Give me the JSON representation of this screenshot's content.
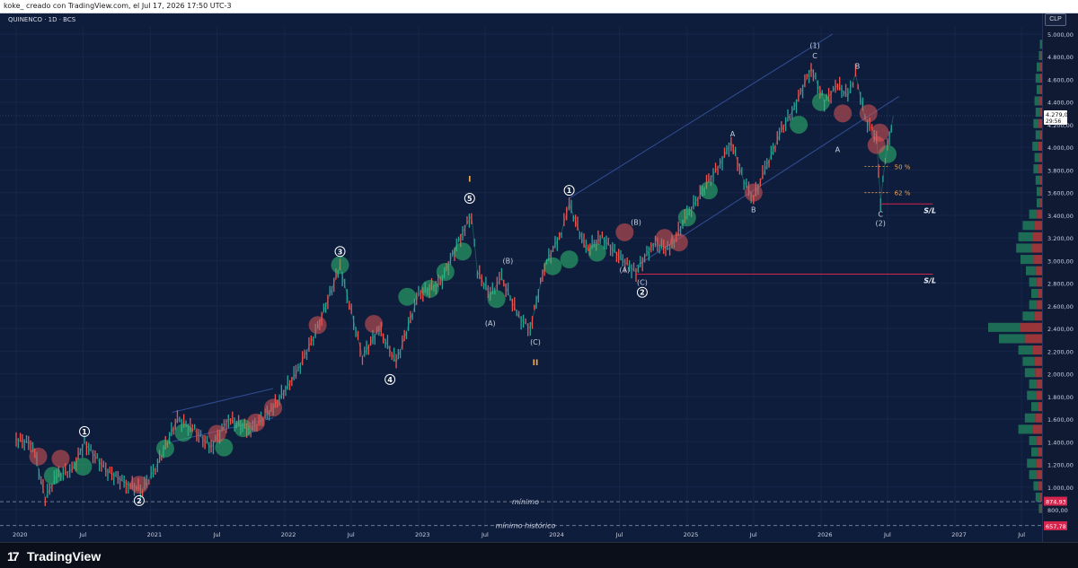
{
  "header": {
    "text": "koke_ creado con TradingView.com, el Jul 17, 2026 17:50 UTC-3"
  },
  "symbol": {
    "text": "QUINENCO · 1D · BCS"
  },
  "price_scale": {
    "currency": "CLP"
  },
  "footer": {
    "brand": "TradingView"
  },
  "colors": {
    "background": "#0f1d3d",
    "up": "#26a69a",
    "down": "#ef5350",
    "fib": "#f0a550",
    "sl": "#d6254d"
  },
  "chart_data": {
    "type": "candlestick",
    "y_ticks": [
      "5.000,00",
      "4.800,00",
      "4.600,00",
      "4.400,00",
      "4.200,00",
      "4.000,00",
      "3.800,00",
      "3.600,00",
      "3.400,00",
      "3.200,00",
      "3.000,00",
      "2.800,00",
      "2.600,00",
      "2.400,00",
      "2.200,00",
      "2.000,00",
      "1.800,00",
      "1.600,00",
      "1.400,00",
      "1.200,00",
      "1.000,00",
      "800,00"
    ],
    "y_tick_values": [
      5000,
      4800,
      4600,
      4400,
      4200,
      4000,
      3800,
      3600,
      3400,
      3200,
      3000,
      2800,
      2600,
      2400,
      2200,
      2000,
      1800,
      1600,
      1400,
      1200,
      1000,
      800
    ],
    "x_ticks": [
      "2020",
      "Jul",
      "2021",
      "Jul",
      "2022",
      "Jul",
      "2023",
      "Jul",
      "2024",
      "Jul",
      "2025",
      "Jul",
      "2026",
      "Jul",
      "2027",
      "Jul"
    ],
    "x_tick_dates": [
      "2020-01-01",
      "2020-07-01",
      "2021-01-01",
      "2021-07-01",
      "2022-01-01",
      "2022-07-01",
      "2023-01-01",
      "2023-07-01",
      "2024-01-01",
      "2024-07-01",
      "2025-01-01",
      "2025-07-01",
      "2026-01-01",
      "2026-07-01",
      "2027-01-01",
      "2027-07-01"
    ],
    "last_price": "4.279,0",
    "countdown": "29:56",
    "price_tags": [
      {
        "label": "874,93",
        "value": 874.93
      },
      {
        "label": "657,78",
        "value": 657.78
      }
    ],
    "price_path": [
      [
        "2020-01-01",
        1420
      ],
      [
        "2020-02-15",
        1380
      ],
      [
        "2020-03-20",
        900
      ],
      [
        "2020-04-20",
        1100
      ],
      [
        "2020-06-01",
        1150
      ],
      [
        "2020-07-05",
        1390
      ],
      [
        "2020-09-01",
        1150
      ],
      [
        "2020-11-01",
        1020
      ],
      [
        "2020-12-10",
        980
      ],
      [
        "2021-01-20",
        1200
      ],
      [
        "2021-03-15",
        1600
      ],
      [
        "2021-05-01",
        1500
      ],
      [
        "2021-06-15",
        1350
      ],
      [
        "2021-08-01",
        1600
      ],
      [
        "2021-10-01",
        1500
      ],
      [
        "2021-12-01",
        1700
      ],
      [
        "2022-02-01",
        2000
      ],
      [
        "2022-04-01",
        2400
      ],
      [
        "2022-06-01",
        2950
      ],
      [
        "2022-06-20",
        2700
      ],
      [
        "2022-08-01",
        2150
      ],
      [
        "2022-09-15",
        2400
      ],
      [
        "2022-11-01",
        2100
      ],
      [
        "2023-01-01",
        2700
      ],
      [
        "2023-03-01",
        2800
      ],
      [
        "2023-05-01",
        3250
      ],
      [
        "2023-05-25",
        3400
      ],
      [
        "2023-06-10",
        2900
      ],
      [
        "2023-07-15",
        2700
      ],
      [
        "2023-08-15",
        2850
      ],
      [
        "2023-10-01",
        2500
      ],
      [
        "2023-11-01",
        2400
      ],
      [
        "2023-12-10",
        2950
      ],
      [
        "2024-01-25",
        3250
      ],
      [
        "2024-02-15",
        3500
      ],
      [
        "2024-04-01",
        3100
      ],
      [
        "2024-05-15",
        3200
      ],
      [
        "2024-07-10",
        3000
      ],
      [
        "2024-08-15",
        2900
      ],
      [
        "2024-10-01",
        3150
      ],
      [
        "2024-11-15",
        3100
      ],
      [
        "2025-01-01",
        3400
      ],
      [
        "2025-03-01",
        3700
      ],
      [
        "2025-04-01",
        3850
      ],
      [
        "2025-05-01",
        4050
      ],
      [
        "2025-06-05",
        3700
      ],
      [
        "2025-07-01",
        3550
      ],
      [
        "2025-08-01",
        3800
      ],
      [
        "2025-09-15",
        4150
      ],
      [
        "2025-10-20",
        4350
      ],
      [
        "2025-12-05",
        4700
      ],
      [
        "2026-01-10",
        4400
      ],
      [
        "2026-02-15",
        4550
      ],
      [
        "2026-03-15",
        4450
      ],
      [
        "2026-04-05",
        4650
      ],
      [
        "2026-05-01",
        4250
      ],
      [
        "2026-06-01",
        4100
      ],
      [
        "2026-06-12",
        3520
      ],
      [
        "2026-06-25",
        3900
      ],
      [
        "2026-07-17",
        4279
      ]
    ],
    "up_circles": [
      [
        "2020-04-10",
        1100
      ],
      [
        "2020-07-01",
        1180
      ],
      [
        "2021-02-10",
        1340
      ],
      [
        "2021-04-01",
        1480
      ],
      [
        "2021-07-20",
        1350
      ],
      [
        "2021-09-10",
        1520
      ],
      [
        "2022-06-01",
        2960
      ],
      [
        "2022-12-01",
        2680
      ],
      [
        "2023-02-01",
        2750
      ],
      [
        "2023-03-15",
        2900
      ],
      [
        "2023-05-01",
        3080
      ],
      [
        "2023-08-01",
        2660
      ],
      [
        "2024-01-01",
        2950
      ],
      [
        "2024-02-15",
        3010
      ],
      [
        "2024-05-01",
        3070
      ],
      [
        "2025-01-01",
        3380
      ],
      [
        "2025-03-01",
        3620
      ],
      [
        "2025-11-01",
        4200
      ],
      [
        "2026-01-01",
        4400
      ],
      [
        "2026-07-01",
        3940
      ]
    ],
    "down_circles": [
      [
        "2020-03-01",
        1270
      ],
      [
        "2020-05-01",
        1250
      ],
      [
        "2020-12-01",
        1020
      ],
      [
        "2021-07-01",
        1470
      ],
      [
        "2021-10-15",
        1570
      ],
      [
        "2021-12-01",
        1700
      ],
      [
        "2022-04-01",
        2430
      ],
      [
        "2022-09-01",
        2440
      ],
      [
        "2024-07-15",
        3250
      ],
      [
        "2024-11-01",
        3200
      ],
      [
        "2024-12-10",
        3160
      ],
      [
        "2025-07-01",
        3600
      ],
      [
        "2026-03-01",
        4300
      ],
      [
        "2026-05-10",
        4300
      ],
      [
        "2026-06-10",
        4130
      ],
      [
        "2026-06-01",
        4020
      ]
    ],
    "wave_labels": [
      {
        "text": "1",
        "circled": true,
        "x": "2020-07-05",
        "y": 1490
      },
      {
        "text": "2",
        "circled": true,
        "x": "2020-12-01",
        "y": 880
      },
      {
        "text": "3",
        "circled": true,
        "x": "2022-06-01",
        "y": 3080
      },
      {
        "text": "4",
        "circled": true,
        "x": "2022-10-15",
        "y": 1950
      },
      {
        "text": "5",
        "circled": true,
        "x": "2023-05-20",
        "y": 3550
      },
      {
        "text": "I",
        "circled": false,
        "x": "2023-05-20",
        "y": 3720,
        "color": "fib"
      },
      {
        "text": "II",
        "circled": false,
        "x": "2023-11-15",
        "y": 2100,
        "color": "fib"
      },
      {
        "text": "(A)",
        "circled": false,
        "x": "2023-07-15",
        "y": 2450
      },
      {
        "text": "(B)",
        "circled": false,
        "x": "2023-09-01",
        "y": 3000
      },
      {
        "text": "(C)",
        "circled": false,
        "x": "2023-11-15",
        "y": 2280
      },
      {
        "text": "1",
        "circled": true,
        "x": "2024-02-15",
        "y": 3620
      },
      {
        "text": "(B)",
        "circled": false,
        "x": "2024-08-15",
        "y": 3340
      },
      {
        "text": "(A)",
        "circled": false,
        "x": "2024-07-15",
        "y": 2920
      },
      {
        "text": "(C)",
        "circled": false,
        "x": "2024-09-01",
        "y": 2810
      },
      {
        "text": "2",
        "circled": true,
        "x": "2024-09-01",
        "y": 2720
      },
      {
        "text": "A",
        "circled": false,
        "x": "2025-05-05",
        "y": 4120
      },
      {
        "text": "B",
        "circled": false,
        "x": "2025-07-01",
        "y": 3450
      },
      {
        "text": "(1)",
        "circled": false,
        "x": "2025-12-15",
        "y": 4900
      },
      {
        "text": "C",
        "circled": false,
        "x": "2025-12-15",
        "y": 4810
      },
      {
        "text": "A",
        "circled": false,
        "x": "2026-02-15",
        "y": 3980
      },
      {
        "text": "B",
        "circled": false,
        "x": "2026-04-10",
        "y": 4720
      },
      {
        "text": "C",
        "circled": false,
        "x": "2026-06-12",
        "y": 3410
      },
      {
        "text": "(2)",
        "circled": false,
        "x": "2026-06-12",
        "y": 3330
      }
    ],
    "fib_levels": [
      {
        "label": "50 %",
        "value": 3830,
        "from": "2026-02-15",
        "to": "2026-08-01"
      },
      {
        "label": "62 %",
        "value": 3600,
        "from": "2026-02-15",
        "to": "2026-08-01"
      }
    ],
    "stop_losses": [
      {
        "label": "S/L",
        "value": 3500,
        "from": "2026-06-12",
        "to": "2026-11-01"
      },
      {
        "label": "S/L",
        "value": 2880,
        "from": "2024-08-15",
        "to": "2026-11-01"
      }
    ],
    "reference_lines": [
      {
        "label": "mínimo",
        "value": 870
      },
      {
        "label": "mínimo histórico",
        "value": 660
      }
    ],
    "channel": [
      {
        "from": [
          "2024-02-15",
          3550
        ],
        "to": [
          "2026-02-01",
          5000
        ]
      },
      {
        "from": [
          "2024-08-15",
          2950
        ],
        "to": [
          "2026-08-01",
          4450
        ]
      },
      {
        "from": [
          "2021-03-01",
          1400
        ],
        "to": [
          "2021-12-01",
          1610
        ]
      },
      {
        "from": [
          "2021-03-01",
          1660
        ],
        "to": [
          "2021-12-01",
          1870
        ]
      }
    ],
    "volume_profile": [
      [
        5000,
        0
      ],
      [
        4900,
        0.02
      ],
      [
        4800,
        0.03
      ],
      [
        4700,
        0.05
      ],
      [
        4600,
        0.06
      ],
      [
        4500,
        0.05
      ],
      [
        4400,
        0.07
      ],
      [
        4300,
        0.06
      ],
      [
        4200,
        0.08
      ],
      [
        4100,
        0.06
      ],
      [
        4000,
        0.09
      ],
      [
        3900,
        0.07
      ],
      [
        3800,
        0.08
      ],
      [
        3700,
        0.06
      ],
      [
        3600,
        0.05
      ],
      [
        3500,
        0.05
      ],
      [
        3400,
        0.12
      ],
      [
        3300,
        0.18
      ],
      [
        3200,
        0.22
      ],
      [
        3100,
        0.24
      ],
      [
        3000,
        0.2
      ],
      [
        2900,
        0.15
      ],
      [
        2800,
        0.12
      ],
      [
        2700,
        0.1
      ],
      [
        2600,
        0.12
      ],
      [
        2500,
        0.18
      ],
      [
        2400,
        0.5
      ],
      [
        2300,
        0.4
      ],
      [
        2200,
        0.22
      ],
      [
        2100,
        0.18
      ],
      [
        2000,
        0.16
      ],
      [
        1900,
        0.12
      ],
      [
        1800,
        0.14
      ],
      [
        1700,
        0.1
      ],
      [
        1600,
        0.16
      ],
      [
        1500,
        0.22
      ],
      [
        1400,
        0.12
      ],
      [
        1300,
        0.1
      ],
      [
        1200,
        0.14
      ],
      [
        1100,
        0.12
      ],
      [
        1000,
        0.08
      ],
      [
        900,
        0.06
      ],
      [
        800,
        0.03
      ]
    ]
  }
}
